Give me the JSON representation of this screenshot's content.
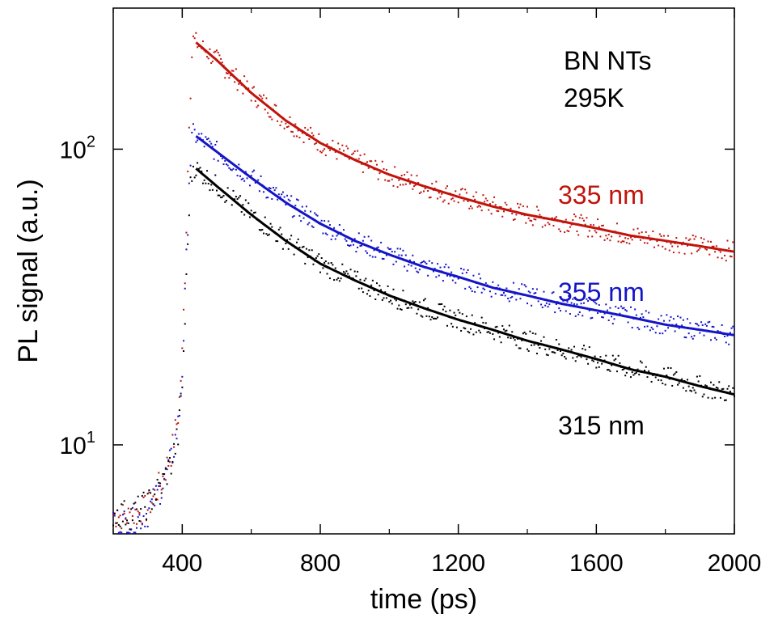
{
  "chart_data": {
    "type": "scatter",
    "xlabel": "time (ps)",
    "ylabel": "PL signal (a.u.)",
    "xlim": [
      200,
      2000
    ],
    "ylim": [
      5,
      300
    ],
    "y_scale": "log",
    "x_ticks": [
      400,
      800,
      1200,
      1600,
      2000
    ],
    "y_ticks": [
      {
        "value": 10,
        "base": "10",
        "exp": "1"
      },
      {
        "value": 100,
        "base": "10",
        "exp": "2"
      }
    ],
    "grid": false,
    "annotations": [
      {
        "text": "BN NTs"
      },
      {
        "text": "295K"
      }
    ],
    "series": [
      {
        "name": "335 nm",
        "color": "#c0140c",
        "peak_x": 430,
        "points": [
          [
            200,
            5.8
          ],
          [
            250,
            5.7
          ],
          [
            300,
            6.1
          ],
          [
            340,
            7.5
          ],
          [
            370,
            9.5
          ],
          [
            390,
            13
          ],
          [
            400,
            20
          ],
          [
            410,
            45
          ],
          [
            420,
            130
          ],
          [
            430,
            235
          ],
          [
            500,
            200
          ],
          [
            600,
            155
          ],
          [
            700,
            125
          ],
          [
            800,
            105
          ],
          [
            900,
            92
          ],
          [
            1000,
            82
          ],
          [
            1100,
            75
          ],
          [
            1200,
            69
          ],
          [
            1300,
            64
          ],
          [
            1400,
            60
          ],
          [
            1500,
            57
          ],
          [
            1600,
            54
          ],
          [
            1700,
            51
          ],
          [
            1800,
            49
          ],
          [
            1900,
            47
          ],
          [
            2000,
            45
          ]
        ]
      },
      {
        "name": "355 nm",
        "color": "#1414c8",
        "peak_x": 430,
        "points": [
          [
            200,
            5.6
          ],
          [
            250,
            5.4
          ],
          [
            300,
            5.9
          ],
          [
            340,
            7.2
          ],
          [
            370,
            9.0
          ],
          [
            390,
            12
          ],
          [
            400,
            18
          ],
          [
            410,
            35
          ],
          [
            420,
            80
          ],
          [
            430,
            113
          ],
          [
            500,
            98
          ],
          [
            600,
            80
          ],
          [
            700,
            66
          ],
          [
            800,
            56
          ],
          [
            900,
            49
          ],
          [
            1000,
            44
          ],
          [
            1100,
            40
          ],
          [
            1200,
            37
          ],
          [
            1300,
            34
          ],
          [
            1400,
            32
          ],
          [
            1500,
            30
          ],
          [
            1600,
            28.5
          ],
          [
            1700,
            27
          ],
          [
            1800,
            25.5
          ],
          [
            1900,
            24.5
          ],
          [
            2000,
            23.5
          ]
        ]
      },
      {
        "name": "315 nm",
        "color": "#000000",
        "peak_x": 430,
        "points": [
          [
            200,
            5.9
          ],
          [
            250,
            5.8
          ],
          [
            300,
            6.3
          ],
          [
            340,
            7.3
          ],
          [
            370,
            8.8
          ],
          [
            390,
            11
          ],
          [
            400,
            16
          ],
          [
            410,
            30
          ],
          [
            420,
            65
          ],
          [
            430,
            88
          ],
          [
            500,
            75
          ],
          [
            600,
            60
          ],
          [
            700,
            49
          ],
          [
            800,
            41
          ],
          [
            900,
            36
          ],
          [
            1000,
            32
          ],
          [
            1100,
            29
          ],
          [
            1200,
            26.5
          ],
          [
            1300,
            24.5
          ],
          [
            1400,
            22.5
          ],
          [
            1500,
            21
          ],
          [
            1600,
            19.5
          ],
          [
            1700,
            18
          ],
          [
            1800,
            17
          ],
          [
            1900,
            15.8
          ],
          [
            2000,
            14.8
          ]
        ]
      }
    ]
  }
}
